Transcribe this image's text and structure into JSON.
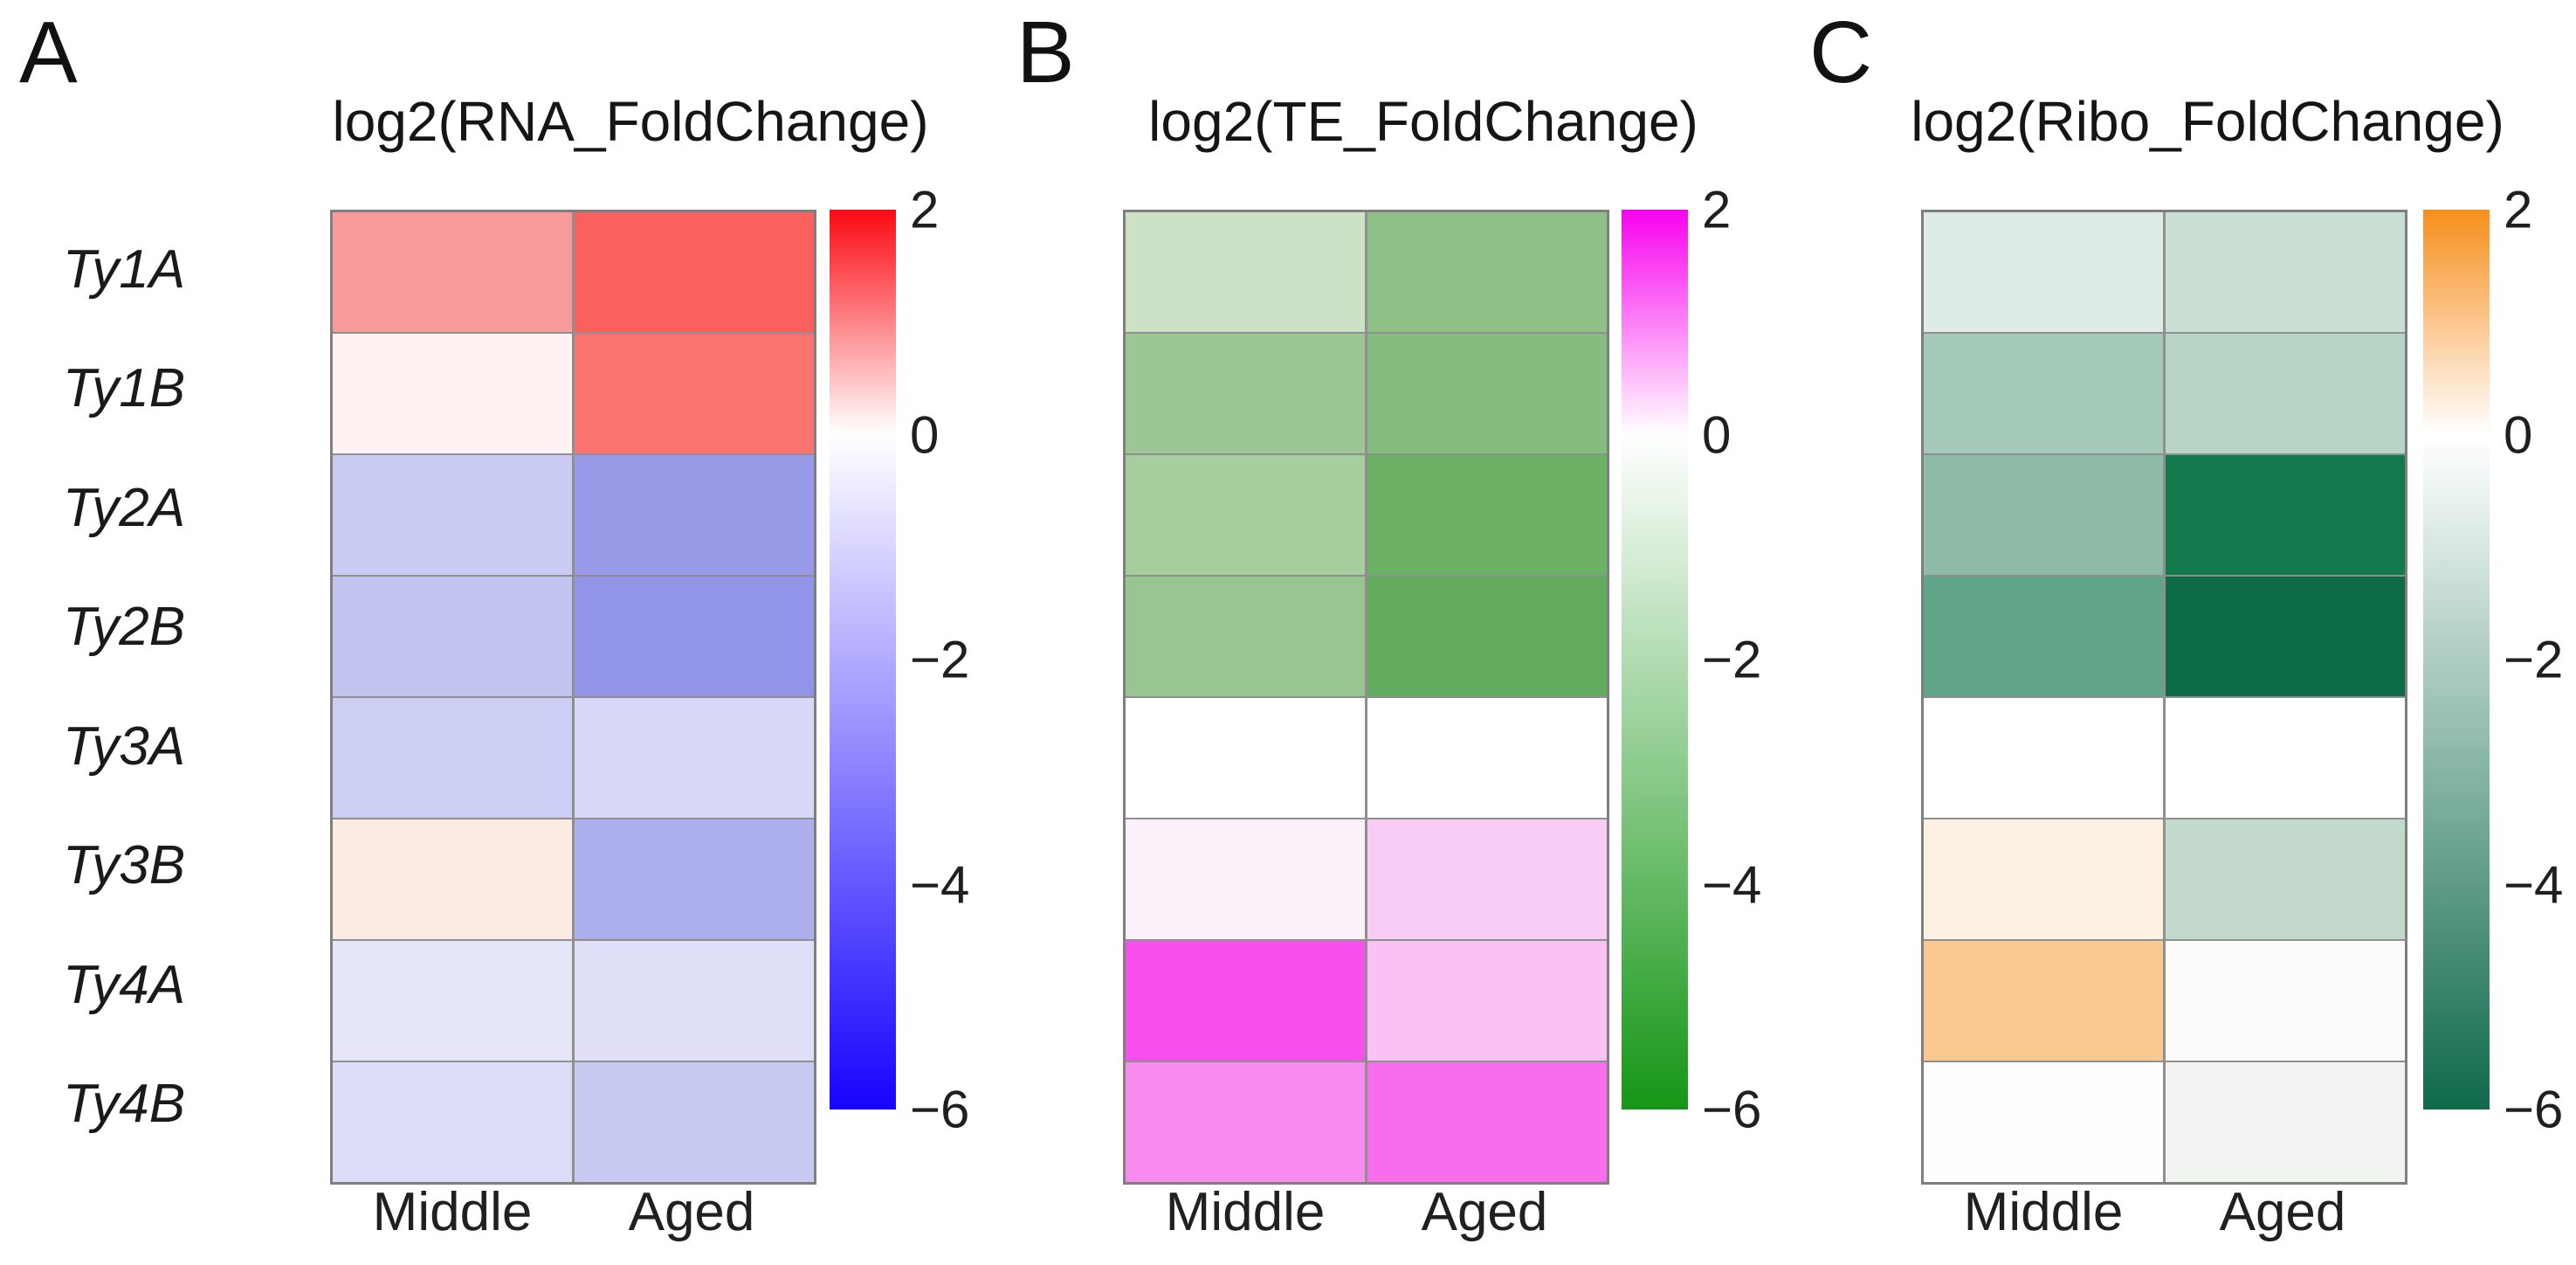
{
  "figure": {
    "panels": [
      {
        "letter": "A",
        "title": "log2(RNA_FoldChange)",
        "row_labels": [
          "Ty1A",
          "Ty1B",
          "Ty2A",
          "Ty2B",
          "Ty3A",
          "Ty3B",
          "Ty4A",
          "Ty4B"
        ],
        "col_labels": [
          "Middle",
          "Aged"
        ],
        "colorbar": {
          "ticks": [
            "2",
            "0",
            "−2",
            "−4",
            "−6"
          ],
          "top_color": "#fa0a12",
          "mid_color": "#ffffff",
          "bottom_color": "#1703fd"
        },
        "cells": [
          [
            "#fa9b9b",
            "#fa615e"
          ],
          [
            "#fdf2f1",
            "#fa7370"
          ],
          [
            "#c9cbf2",
            "#999be9"
          ],
          [
            "#c2c4f0",
            "#9295e7"
          ],
          [
            "#cdcef3",
            "#d8d9f6"
          ],
          [
            "#fbebe4",
            "#aeb0ee"
          ],
          [
            "#e6e6f9",
            "#dfe0f7"
          ],
          [
            "#dbdcf5",
            "#c8c9f1"
          ]
        ]
      },
      {
        "letter": "B",
        "title": "log2(TE_FoldChange)",
        "row_labels": [
          "Ty1A",
          "Ty1B",
          "Ty2A",
          "Ty2B",
          "Ty3A",
          "Ty3B",
          "Ty4A",
          "Ty4B"
        ],
        "col_labels": [
          "Middle",
          "Aged"
        ],
        "colorbar": {
          "ticks": [
            "2",
            "0",
            "−2",
            "−4",
            "−6"
          ],
          "top_color": "#f802ef",
          "mid_color": "#ffffff",
          "bottom_color": "#169616"
        },
        "cells": [
          [
            "#cde1c6",
            "#8fc087"
          ],
          [
            "#9cc795",
            "#85bd7f"
          ],
          [
            "#a5cd9e",
            "#6db167"
          ],
          [
            "#98c691",
            "#63ac5f"
          ],
          [
            "#ffffff",
            "#ffffff"
          ],
          [
            "#fcf1fb",
            "#f8ccf4"
          ],
          [
            "#f94fec",
            "#f9c2f3"
          ],
          [
            "#f98bef",
            "#f76dec"
          ]
        ]
      },
      {
        "letter": "C",
        "title": "log2(Ribo_FoldChange)",
        "row_labels": [
          "Ty1A",
          "Ty1B",
          "Ty2A",
          "Ty2B",
          "Ty3A",
          "Ty3B",
          "Ty4A",
          "Ty4B"
        ],
        "col_labels": [
          "Middle",
          "Aged"
        ],
        "colorbar": {
          "ticks": [
            "2",
            "0",
            "−2",
            "−4",
            "−6"
          ],
          "top_color": "#f78e1d",
          "mid_color": "#ffffff",
          "bottom_color": "#0f6a4a"
        },
        "cells": [
          [
            "#dfebe5",
            "#ccdfd5"
          ],
          [
            "#a4c9b9",
            "#b8d4c7"
          ],
          [
            "#8cbaa7",
            "#15794e"
          ],
          [
            "#60a588",
            "#0d6c46"
          ],
          [
            "#ffffff",
            "#ffffff"
          ],
          [
            "#fbf0e1",
            "#c3d9cc"
          ],
          [
            "#f9c98f",
            "#fafbfa"
          ],
          [
            "#fefefe",
            "#f1f4f1"
          ]
        ]
      }
    ]
  },
  "chart_data": [
    {
      "type": "heatmap",
      "panel": "A",
      "title": "log2(RNA_FoldChange)",
      "rows": [
        "Ty1A",
        "Ty1B",
        "Ty2A",
        "Ty2B",
        "Ty3A",
        "Ty3B",
        "Ty4A",
        "Ty4B"
      ],
      "columns": [
        "Middle",
        "Aged"
      ],
      "values_log2fc_approx": [
        [
          0.8,
          1.3
        ],
        [
          0.1,
          1.15
        ],
        [
          -1.4,
          -2.6
        ],
        [
          -1.6,
          -2.8
        ],
        [
          -1.2,
          -0.9
        ],
        [
          0.15,
          -2.1
        ],
        [
          -0.6,
          -0.75
        ],
        [
          -0.85,
          -1.4
        ]
      ],
      "colorbar": {
        "range": [
          2,
          -6
        ],
        "ticks": [
          2,
          0,
          -2,
          -4,
          -6
        ],
        "palette": "red(positive) to white(0) to blue(negative)",
        "position": "right"
      }
    },
    {
      "type": "heatmap",
      "panel": "B",
      "title": "log2(TE_FoldChange)",
      "rows": [
        "Ty1A",
        "Ty1B",
        "Ty2A",
        "Ty2B",
        "Ty3A",
        "Ty3B",
        "Ty4A",
        "Ty4B"
      ],
      "columns": [
        "Middle",
        "Aged"
      ],
      "values_log2fc_approx": [
        [
          -1.3,
          -2.9
        ],
        [
          -2.5,
          -3.1
        ],
        [
          -2.3,
          -3.9
        ],
        [
          -2.8,
          -4.1
        ],
        [
          0,
          0
        ],
        [
          0.1,
          0.4
        ],
        [
          1.4,
          0.5
        ],
        [
          0.9,
          1.2
        ]
      ],
      "colorbar": {
        "range": [
          2,
          -6
        ],
        "ticks": [
          2,
          0,
          -2,
          -4,
          -6
        ],
        "palette": "magenta(positive) to white(0) to green(negative)",
        "position": "right"
      }
    },
    {
      "type": "heatmap",
      "panel": "C",
      "title": "log2(Ribo_FoldChange)",
      "rows": [
        "Ty1A",
        "Ty1B",
        "Ty2A",
        "Ty2B",
        "Ty3A",
        "Ty3B",
        "Ty4A",
        "Ty4B"
      ],
      "columns": [
        "Middle",
        "Aged"
      ],
      "values_log2fc_approx": [
        [
          -0.8,
          -1.3
        ],
        [
          -2.4,
          -2.0
        ],
        [
          -3.4,
          -5.7
        ],
        [
          -4.7,
          -6.0
        ],
        [
          0,
          0
        ],
        [
          0.2,
          -1.8
        ],
        [
          1.0,
          0.0
        ],
        [
          0.0,
          -0.2
        ]
      ],
      "colorbar": {
        "range": [
          2,
          -6
        ],
        "ticks": [
          2,
          0,
          -2,
          -4,
          -6
        ],
        "palette": "orange(positive) to white(0) to dark teal-green(negative)",
        "position": "right"
      }
    }
  ]
}
